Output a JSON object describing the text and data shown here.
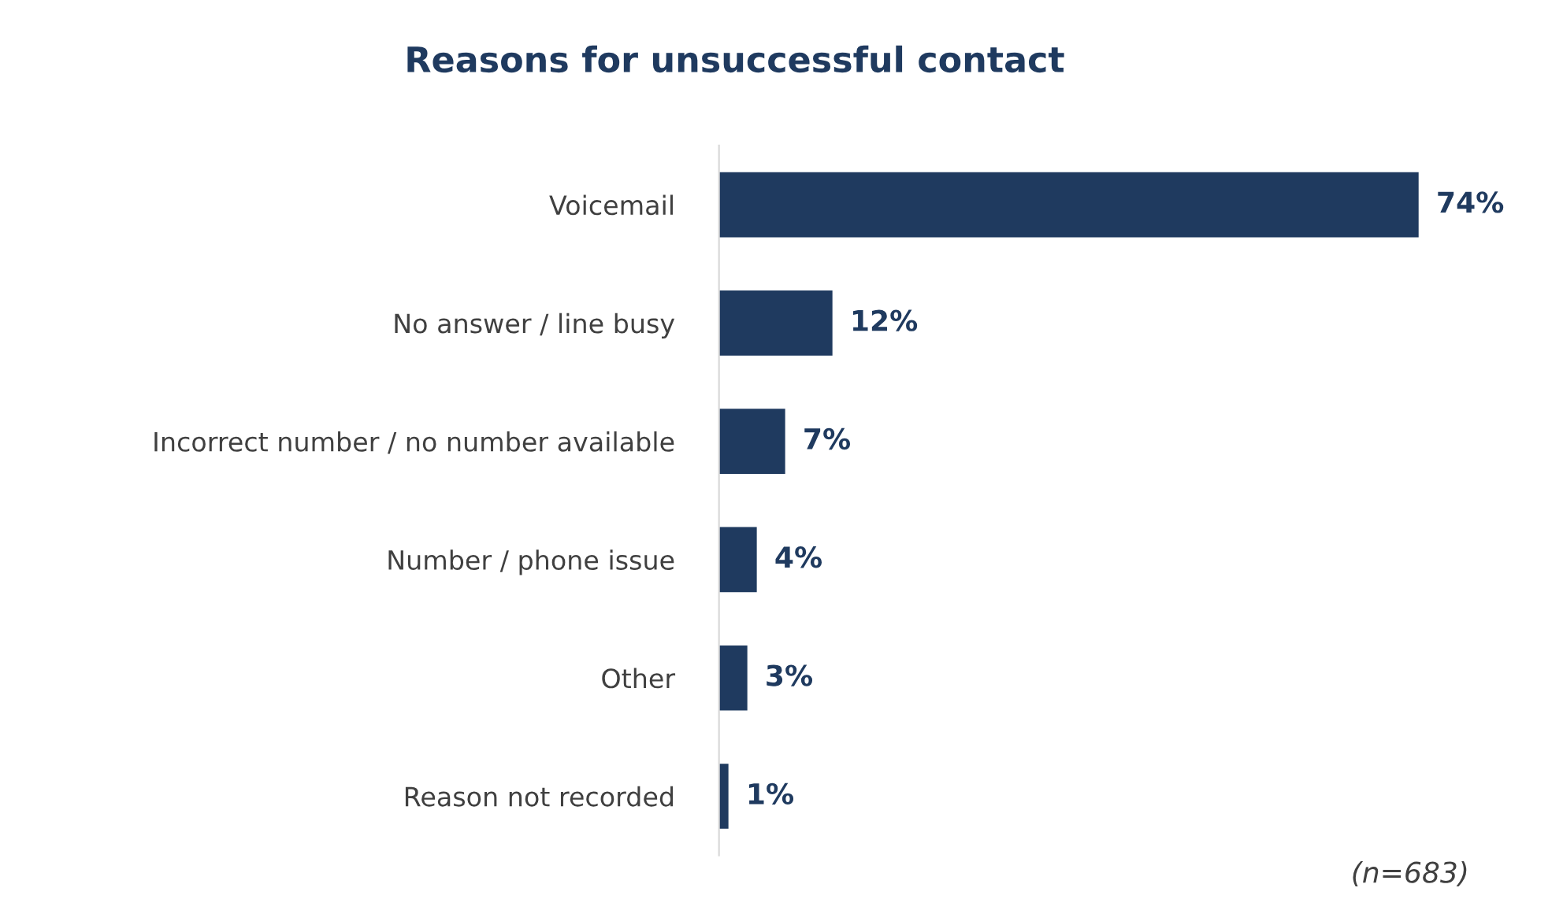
{
  "chart_data": {
    "type": "bar",
    "orientation": "horizontal",
    "title": "Reasons for unsuccessful contact",
    "categories": [
      "Voicemail",
      "No answer / line busy",
      "Incorrect number / no number available",
      "Number / phone issue",
      "Other",
      "Reason not recorded"
    ],
    "values": [
      74,
      12,
      7,
      4,
      3,
      1
    ],
    "value_labels": [
      "74%",
      "12%",
      "7%",
      "4%",
      "3%",
      "1%"
    ],
    "color": "#1f3a5f",
    "annotations": [
      "(n=683)"
    ],
    "grid": false,
    "legend": false
  }
}
